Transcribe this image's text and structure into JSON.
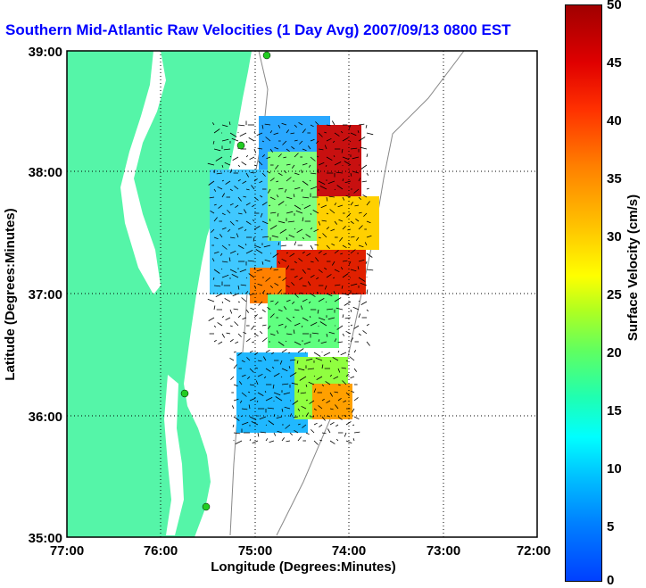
{
  "title": "Southern Mid-Atlantic Raw Velocities (1 Day Avg) 2007/09/13 0800 EST",
  "axes": {
    "xlabel": "Longitude (Degrees:Minutes)",
    "ylabel": "Latitude (Degrees:Minutes)",
    "xticks": [
      "77:00",
      "76:00",
      "75:00",
      "74:00",
      "73:00",
      "72:00"
    ],
    "yticks": [
      "39:00",
      "38:00",
      "37:00",
      "36:00",
      "35:00"
    ]
  },
  "colorbar": {
    "label": "Surface Velocity (cm/s)",
    "ticks": [
      "50",
      "45",
      "40",
      "35",
      "30",
      "25",
      "20",
      "15",
      "10",
      "5",
      "0"
    ]
  },
  "colors": {
    "land": "#55f5a8",
    "ocean": "#ffffff",
    "title": "#0000ff",
    "station": "#22cc22"
  },
  "chart_data": {
    "type": "heatmap",
    "xlim": [
      -77,
      -72
    ],
    "ylim": [
      35,
      39
    ],
    "colorbar_range": [
      0,
      50
    ],
    "grid": true
  }
}
